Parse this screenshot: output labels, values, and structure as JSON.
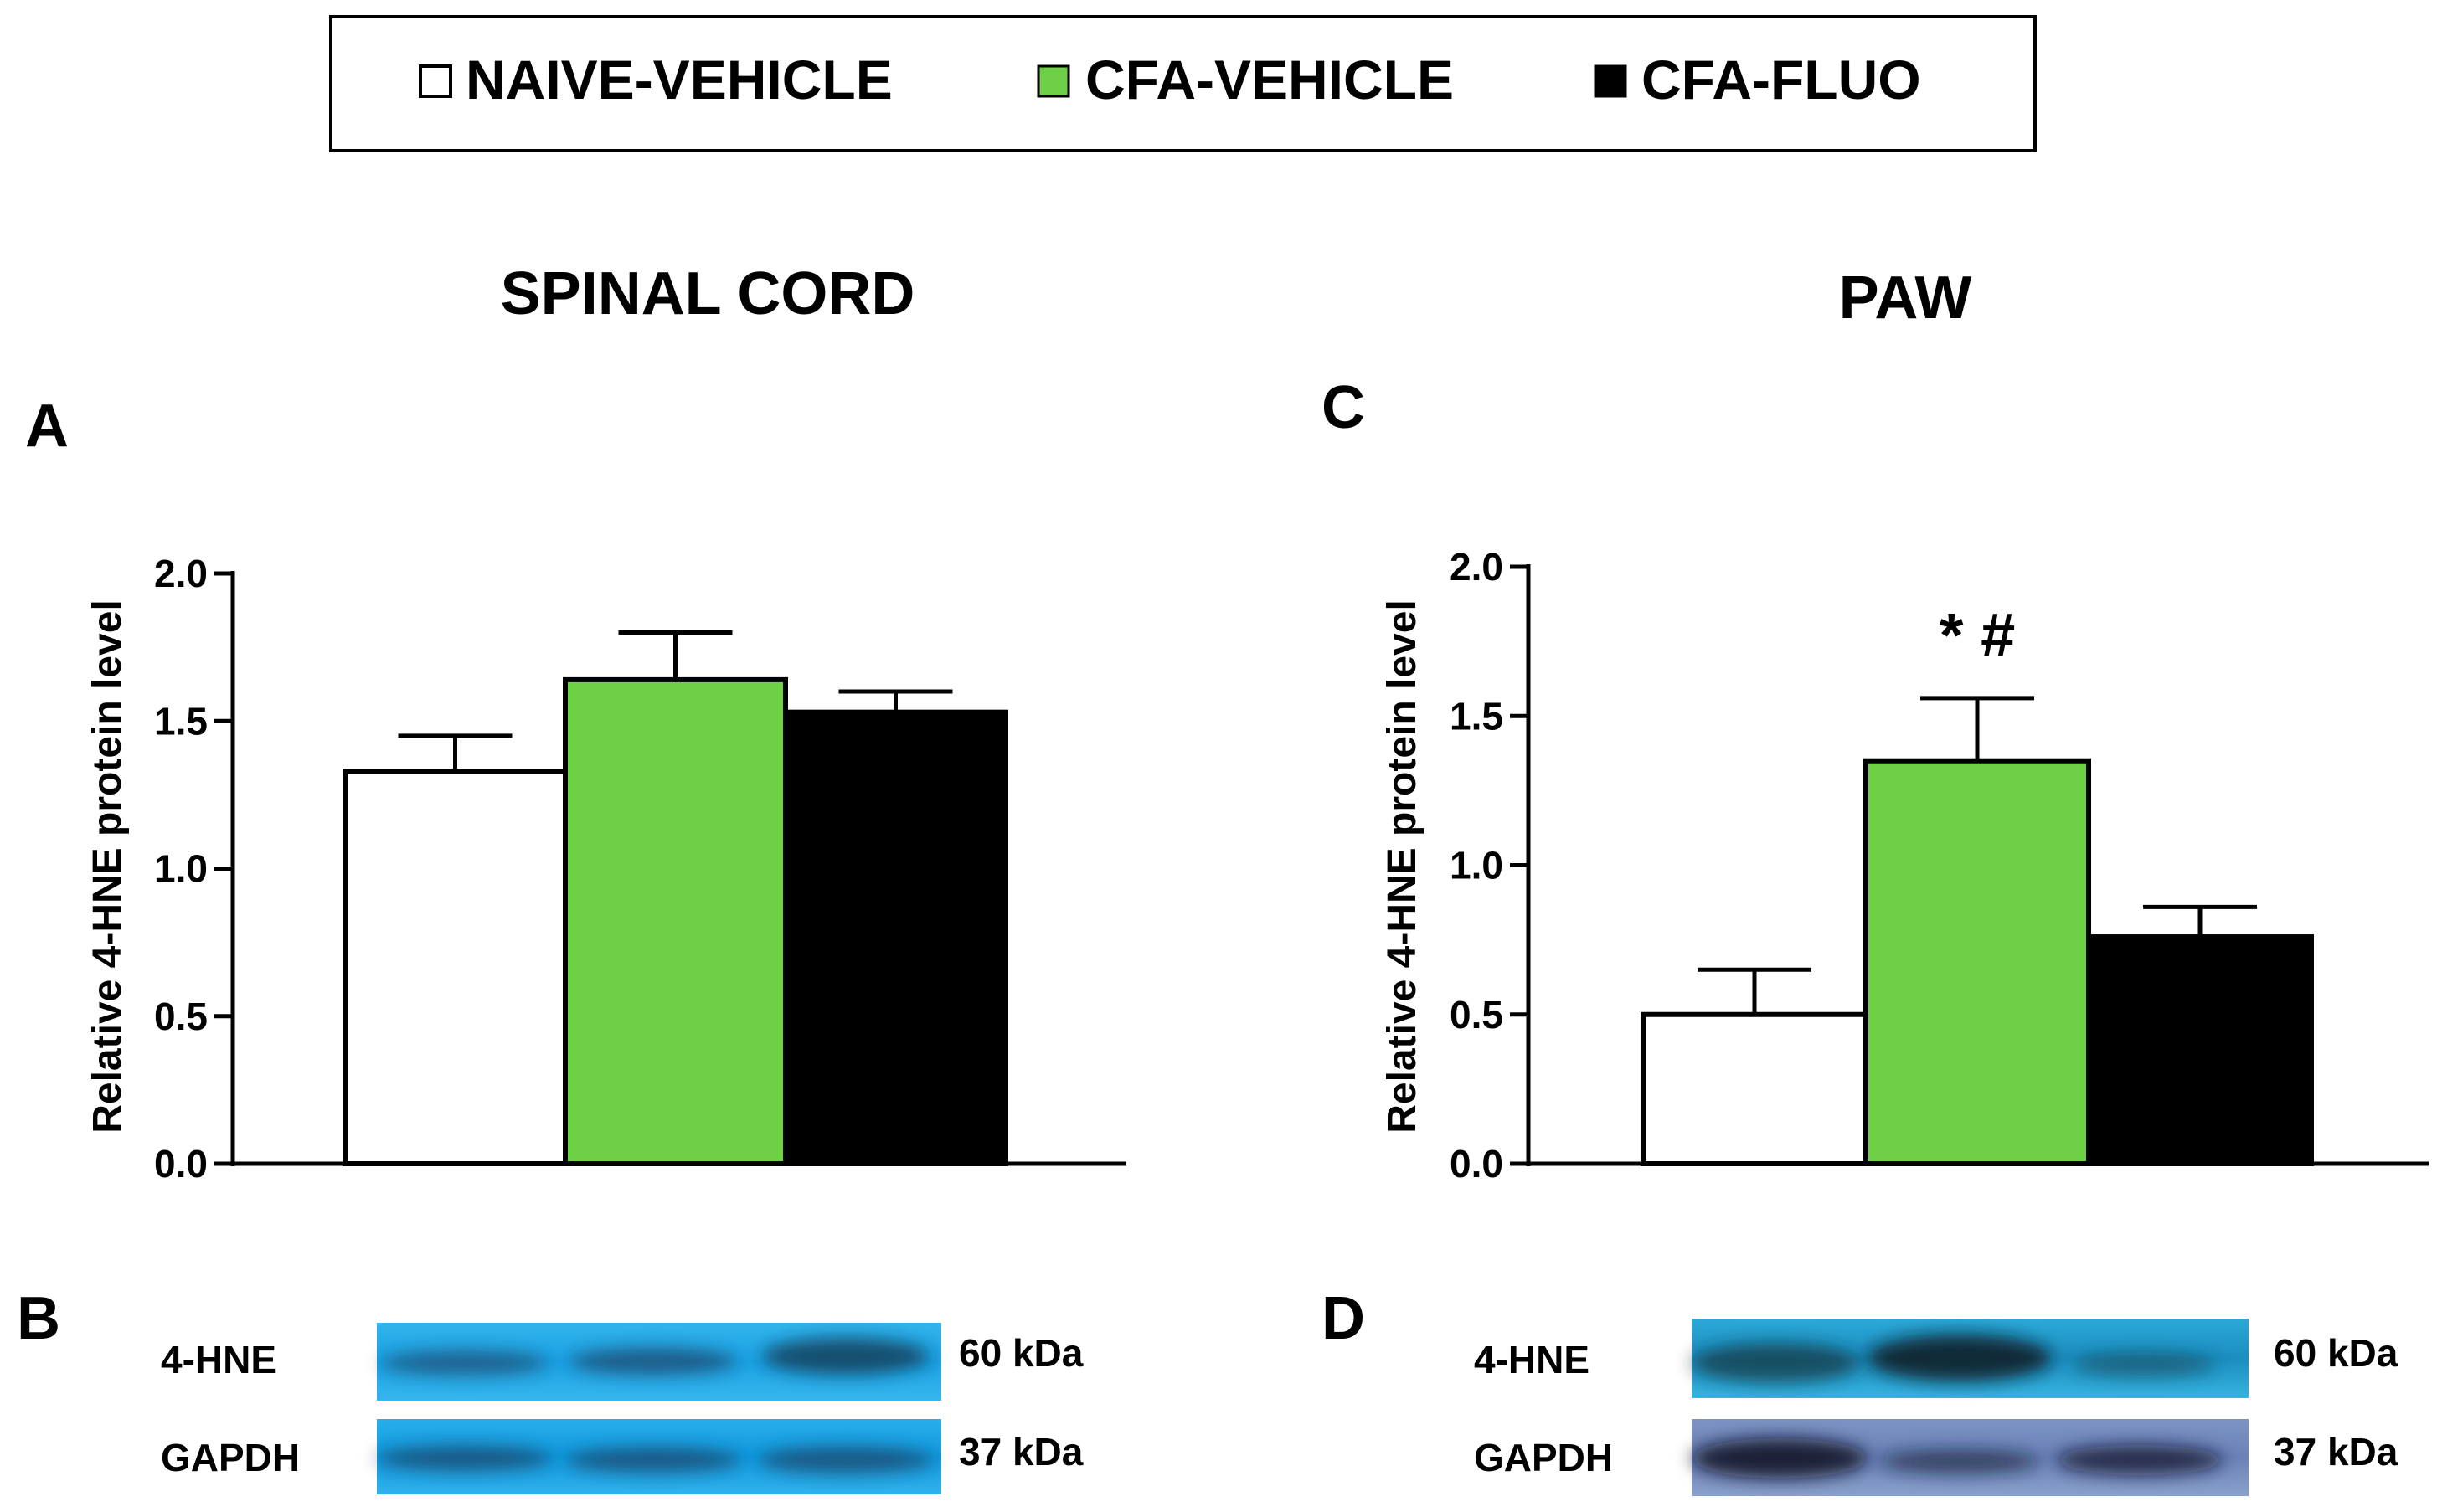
{
  "legend": [
    {
      "label": "NAIVE-VEHICLE",
      "color": "#ffffff"
    },
    {
      "label": "CFA-VEHICLE",
      "color": "#6ed044"
    },
    {
      "label": "CFA-FLUO",
      "color": "#000000"
    }
  ],
  "sections": {
    "left_title": "SPINAL CORD",
    "right_title": "PAW"
  },
  "chart_data": [
    {
      "type": "bar",
      "panel": "A",
      "ylabel": "Relative 4-HNE protein level",
      "xlabel": "",
      "categories": [
        "NAIVE-VEHICLE",
        "CFA-VEHICLE",
        "CFA-FLUO"
      ],
      "values": [
        1.33,
        1.64,
        1.53
      ],
      "errors": [
        0.12,
        0.16,
        0.07
      ],
      "ylim": [
        0,
        2.0
      ],
      "yticks": [
        "0.0",
        "0.5",
        "1.0",
        "1.5",
        "2.0"
      ],
      "colors": [
        "#ffffff",
        "#6ed044",
        "#000000"
      ],
      "annotations": [],
      "grid": false
    },
    {
      "type": "bar",
      "panel": "C",
      "ylabel": "Relative 4-HNE protein level",
      "xlabel": "",
      "categories": [
        "NAIVE-VEHICLE",
        "CFA-VEHICLE",
        "CFA-FLUO"
      ],
      "values": [
        0.5,
        1.35,
        0.76
      ],
      "errors": [
        0.15,
        0.21,
        0.1
      ],
      "ylim": [
        0,
        2.0
      ],
      "yticks": [
        "0.0",
        "0.5",
        "1.0",
        "1.5",
        "2.0"
      ],
      "colors": [
        "#ffffff",
        "#6ed044",
        "#000000"
      ],
      "annotations": [
        {
          "category_index": 1,
          "text": "* #"
        }
      ],
      "grid": false
    }
  ],
  "blots": [
    {
      "panel": "B",
      "rows": [
        {
          "protein": "4-HNE",
          "size": "60 kDa"
        },
        {
          "protein": "GAPDH",
          "size": "37 kDa"
        }
      ]
    },
    {
      "panel": "D",
      "rows": [
        {
          "protein": "4-HNE",
          "size": "60 kDa"
        },
        {
          "protein": "GAPDH",
          "size": "37 kDa"
        }
      ]
    }
  ]
}
